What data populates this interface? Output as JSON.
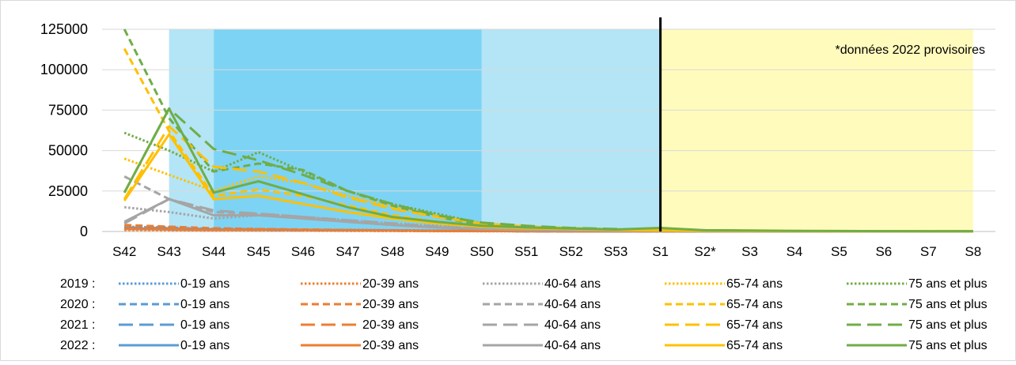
{
  "chart_data": {
    "type": "line",
    "categories": [
      "S42",
      "S43",
      "S44",
      "S45",
      "S46",
      "S47",
      "S48",
      "S49",
      "S50",
      "S51",
      "S52",
      "S53",
      "S1",
      "S2*",
      "S3",
      "S4",
      "S5",
      "S6",
      "S7",
      "S8"
    ],
    "yticks": [
      0,
      25000,
      50000,
      75000,
      100000,
      125000
    ],
    "ylim": [
      0,
      125000
    ],
    "grid": true,
    "annotation": "*données 2022 provisoires",
    "colors": {
      "band_light": "#b3e5f6",
      "band_dark": "#7dd3f4",
      "band_yellow": "#fffbbd",
      "age_0_19": "#5b9bd5",
      "age_20_39": "#ed7d31",
      "age_40_64": "#a5a5a5",
      "age_65_74": "#ffc000",
      "age_75_plus": "#70ad47"
    },
    "legend": {
      "years": [
        "2019 :",
        "2020 :",
        "2021 :",
        "2022 :"
      ],
      "ages": [
        "0-19 ans",
        "20-39 ans",
        "40-64 ans",
        "65-74 ans",
        "75 ans et plus"
      ]
    },
    "series": [
      {
        "year": "2019",
        "age": "0-19 ans",
        "style": "dotted",
        "values": [
          3000,
          2500,
          1500,
          1500,
          1000,
          1000,
          800,
          600,
          400,
          300,
          200,
          150,
          100,
          50,
          50,
          50,
          50,
          50,
          50,
          50
        ]
      },
      {
        "year": "2019",
        "age": "20-39 ans",
        "style": "dotted",
        "values": [
          1000,
          800,
          600,
          600,
          500,
          400,
          300,
          200,
          150,
          100,
          80,
          60,
          50,
          30,
          30,
          30,
          30,
          30,
          30,
          30
        ]
      },
      {
        "year": "2019",
        "age": "40-64 ans",
        "style": "dotted",
        "values": [
          15000,
          12000,
          8000,
          10000,
          9000,
          7000,
          5000,
          3500,
          2000,
          1200,
          800,
          500,
          300,
          200,
          150,
          100,
          100,
          80,
          60,
          50
        ]
      },
      {
        "year": "2019",
        "age": "65-74 ans",
        "style": "dotted",
        "values": [
          45000,
          35000,
          25000,
          34000,
          30000,
          22000,
          15000,
          10000,
          5000,
          3000,
          2000,
          1200,
          700,
          400,
          300,
          200,
          150,
          100,
          80,
          60
        ]
      },
      {
        "year": "2019",
        "age": "75 ans et plus",
        "style": "dotted",
        "values": [
          61000,
          50000,
          37000,
          49000,
          37000,
          25000,
          17000,
          11000,
          5000,
          3000,
          2000,
          1300,
          800,
          500,
          300,
          200,
          150,
          100,
          80,
          60
        ]
      },
      {
        "year": "2020",
        "age": "0-19 ans",
        "style": "dashed",
        "values": [
          2500,
          2000,
          1500,
          1300,
          1000,
          800,
          600,
          400,
          300,
          200,
          150,
          100,
          80,
          50,
          40,
          30,
          30,
          30,
          30,
          30
        ]
      },
      {
        "year": "2020",
        "age": "20-39 ans",
        "style": "dashed",
        "values": [
          4000,
          3000,
          2000,
          1500,
          1200,
          900,
          700,
          500,
          300,
          200,
          150,
          100,
          80,
          50,
          40,
          30,
          30,
          30,
          30,
          30
        ]
      },
      {
        "year": "2020",
        "age": "40-64 ans",
        "style": "dashed",
        "values": [
          34000,
          20000,
          12000,
          11000,
          9000,
          6000,
          4000,
          2500,
          1500,
          1000,
          700,
          400,
          300,
          200,
          150,
          100,
          80,
          60,
          50,
          40
        ]
      },
      {
        "year": "2020",
        "age": "65-74 ans",
        "style": "dashed",
        "values": [
          113000,
          62000,
          22000,
          26000,
          22000,
          16000,
          10000,
          6000,
          3000,
          2000,
          1200,
          800,
          500,
          300,
          200,
          150,
          100,
          80,
          60,
          50
        ]
      },
      {
        "year": "2020",
        "age": "75 ans et plus",
        "style": "dashed",
        "values": [
          125000,
          70000,
          37000,
          42000,
          38000,
          25000,
          16000,
          9000,
          4000,
          2500,
          1500,
          1000,
          700,
          400,
          300,
          200,
          150,
          100,
          80,
          60
        ]
      },
      {
        "year": "2021",
        "age": "0-19 ans",
        "style": "longdash",
        "values": [
          2000,
          1800,
          1200,
          1000,
          800,
          700,
          500,
          350,
          250,
          180,
          120,
          90,
          70,
          40,
          30,
          30,
          30,
          30,
          30,
          30
        ]
      },
      {
        "year": "2021",
        "age": "20-39 ans",
        "style": "longdash",
        "values": [
          2500,
          2000,
          1300,
          1100,
          900,
          700,
          500,
          350,
          250,
          180,
          120,
          90,
          70,
          40,
          30,
          30,
          30,
          30,
          30,
          30
        ]
      },
      {
        "year": "2021",
        "age": "40-64 ans",
        "style": "longdash",
        "values": [
          5000,
          20000,
          13000,
          11000,
          9000,
          7000,
          5000,
          3000,
          1800,
          1200,
          800,
          500,
          300,
          200,
          150,
          100,
          80,
          60,
          50,
          40
        ]
      },
      {
        "year": "2021",
        "age": "65-74 ans",
        "style": "longdash",
        "values": [
          20000,
          65000,
          40000,
          37000,
          30000,
          21000,
          14000,
          9000,
          5000,
          3000,
          2000,
          1200,
          800,
          500,
          300,
          200,
          150,
          100,
          80,
          60
        ]
      },
      {
        "year": "2021",
        "age": "75 ans et plus",
        "style": "longdash",
        "values": [
          24000,
          76000,
          51000,
          44000,
          35000,
          25000,
          17000,
          10000,
          5500,
          3500,
          2200,
          1500,
          1000,
          700,
          500,
          300,
          200,
          150,
          100,
          80
        ]
      },
      {
        "year": "2022",
        "age": "0-19 ans",
        "style": "solid",
        "values": [
          2000,
          1500,
          1200,
          1200,
          1000,
          800,
          600,
          400,
          300,
          200,
          150,
          100,
          80,
          50,
          40,
          30,
          30,
          30,
          30,
          30
        ]
      },
      {
        "year": "2022",
        "age": "20-39 ans",
        "style": "solid",
        "values": [
          1500,
          1200,
          1000,
          1200,
          1000,
          800,
          600,
          400,
          300,
          200,
          150,
          100,
          80,
          50,
          40,
          30,
          30,
          30,
          30,
          30
        ]
      },
      {
        "year": "2022",
        "age": "40-64 ans",
        "style": "solid",
        "values": [
          6000,
          20000,
          10000,
          10000,
          8000,
          6000,
          4000,
          2500,
          1500,
          1000,
          700,
          500,
          300,
          200,
          150,
          100,
          80,
          60,
          50,
          40
        ]
      },
      {
        "year": "2022",
        "age": "65-74 ans",
        "style": "solid",
        "values": [
          19000,
          60000,
          20000,
          22000,
          17000,
          12000,
          8000,
          5000,
          3000,
          2000,
          1500,
          1000,
          700,
          500,
          300,
          200,
          150,
          100,
          80,
          60
        ]
      },
      {
        "year": "2022",
        "age": "75 ans et plus",
        "style": "solid",
        "values": [
          24000,
          76000,
          24000,
          31000,
          23000,
          15000,
          9000,
          6000,
          3500,
          2500,
          1800,
          1200,
          2200,
          800,
          600,
          400,
          300,
          200,
          150,
          100
        ]
      }
    ]
  }
}
